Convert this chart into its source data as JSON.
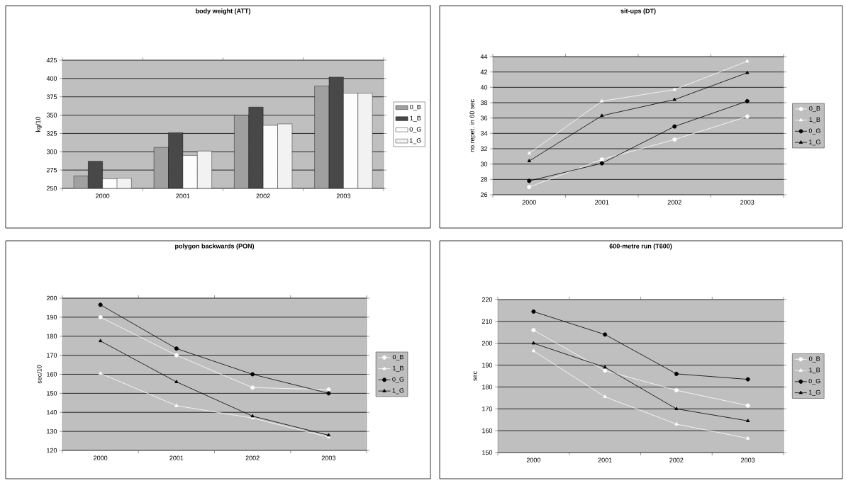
{
  "chart_data": [
    {
      "type": "bar",
      "title": "body weight (ATT)",
      "ylabel": "kg/10",
      "categories": [
        "2000",
        "2001",
        "2002",
        "2003"
      ],
      "ylim": [
        250,
        425
      ],
      "yticks": [
        250,
        275,
        300,
        325,
        350,
        375,
        400,
        425
      ],
      "grid": "y",
      "legend": "right",
      "series": [
        {
          "name": "0_B",
          "color": "#a0a0a0",
          "values": [
            267,
            306,
            350,
            390
          ]
        },
        {
          "name": "1_B",
          "color": "#484848",
          "values": [
            287,
            326,
            361,
            402
          ]
        },
        {
          "name": "0_G",
          "color": "#fcfcfc",
          "values": [
            263,
            295,
            336,
            380
          ]
        },
        {
          "name": "1_G",
          "color": "#f2f2f2",
          "values": [
            264,
            301,
            338,
            380
          ]
        }
      ]
    },
    {
      "type": "line",
      "title": "sit-ups (DT)",
      "ylabel": "no.repet. in 60 sec",
      "categories": [
        "2000",
        "2001",
        "2002",
        "2003"
      ],
      "ylim": [
        26,
        44
      ],
      "yticks": [
        26,
        28,
        30,
        32,
        34,
        36,
        38,
        40,
        42,
        44
      ],
      "grid": "y",
      "legend": "right",
      "series": [
        {
          "name": "0_B",
          "color": "#ffffff",
          "marker": "circle",
          "values": [
            27.0,
            30.6,
            33.2,
            36.2
          ]
        },
        {
          "name": "1_B",
          "color": "#ffffff",
          "marker": "triangle",
          "values": [
            31.4,
            38.2,
            39.7,
            43.4
          ]
        },
        {
          "name": "0_G",
          "color": "#000000",
          "marker": "circle",
          "values": [
            27.8,
            30.1,
            34.9,
            38.2
          ]
        },
        {
          "name": "1_G",
          "color": "#000000",
          "marker": "triangle",
          "values": [
            30.4,
            36.3,
            38.4,
            41.9
          ]
        }
      ]
    },
    {
      "type": "line",
      "title": "polygon backwards (PON)",
      "ylabel": "sec/10",
      "categories": [
        "2000",
        "2001",
        "2002",
        "2003"
      ],
      "ylim": [
        120,
        200
      ],
      "yticks": [
        120,
        130,
        140,
        150,
        160,
        170,
        180,
        190,
        200
      ],
      "grid": "y",
      "legend": "right",
      "series": [
        {
          "name": "0_B",
          "color": "#ffffff",
          "marker": "circle",
          "values": [
            190,
            170,
            153,
            152
          ]
        },
        {
          "name": "1_B",
          "color": "#ffffff",
          "marker": "triangle",
          "values": [
            160.5,
            143.5,
            137,
            127
          ]
        },
        {
          "name": "0_G",
          "color": "#000000",
          "marker": "circle",
          "values": [
            196.5,
            173.5,
            160,
            150
          ]
        },
        {
          "name": "1_G",
          "color": "#000000",
          "marker": "triangle",
          "values": [
            177.5,
            156,
            138,
            128
          ]
        }
      ]
    },
    {
      "type": "line",
      "title": "600-metre run (T600)",
      "ylabel": "sec",
      "categories": [
        "2000",
        "2001",
        "2002",
        "2003"
      ],
      "ylim": [
        150,
        220
      ],
      "yticks": [
        150,
        160,
        170,
        180,
        190,
        200,
        210,
        220
      ],
      "grid": "y",
      "legend": "right",
      "series": [
        {
          "name": "0_B",
          "color": "#ffffff",
          "marker": "circle",
          "values": [
            206,
            187.5,
            178.5,
            171.5
          ]
        },
        {
          "name": "1_B",
          "color": "#ffffff",
          "marker": "triangle",
          "values": [
            196.5,
            175.5,
            163,
            156.5
          ]
        },
        {
          "name": "0_G",
          "color": "#000000",
          "marker": "circle",
          "values": [
            214.5,
            204,
            186,
            183.5
          ]
        },
        {
          "name": "1_G",
          "color": "#000000",
          "marker": "triangle",
          "values": [
            200,
            189,
            170,
            164.5
          ]
        }
      ]
    }
  ]
}
